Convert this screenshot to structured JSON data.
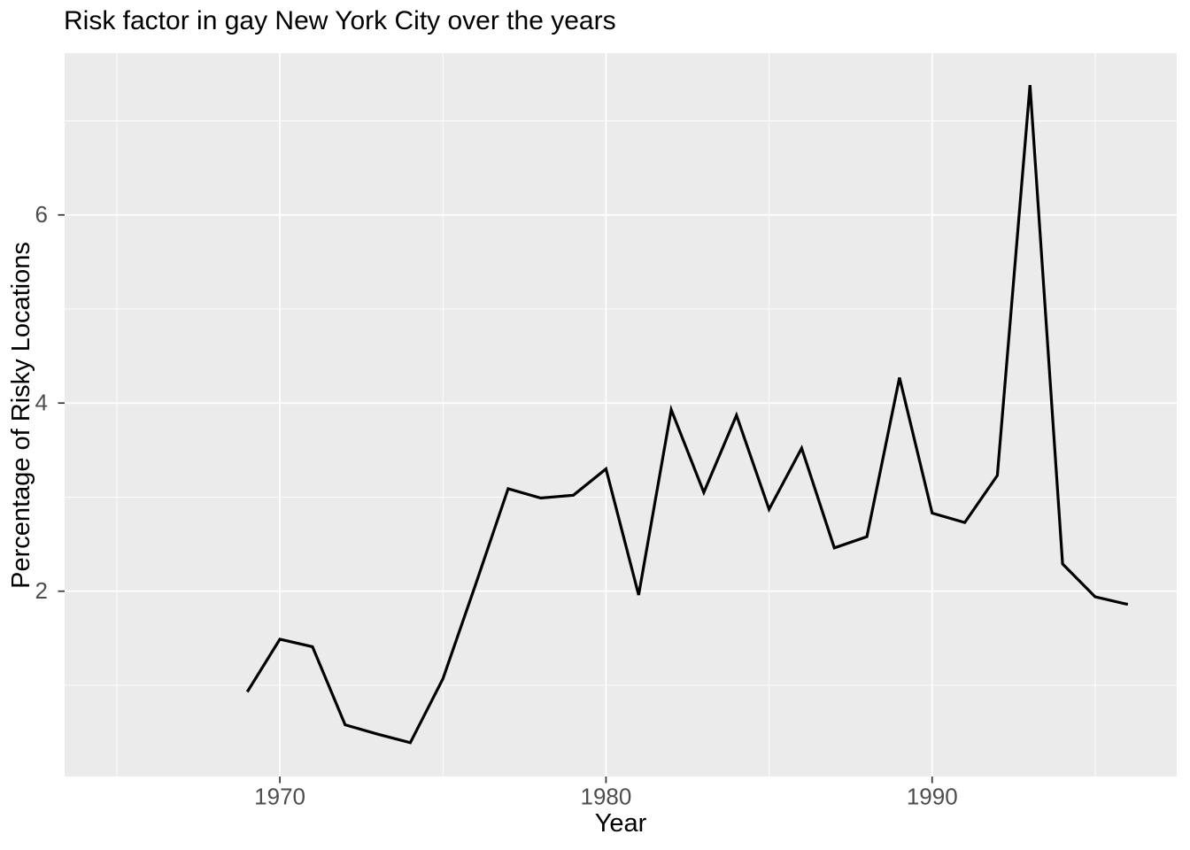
{
  "chart_data": {
    "type": "line",
    "title": "Risk factor in gay New York City over the years",
    "xlabel": "Year",
    "ylabel": "Percentage of Risky Locations",
    "x": [
      1969,
      1970,
      1971,
      1972,
      1973,
      1974,
      1975,
      1976,
      1977,
      1978,
      1979,
      1980,
      1981,
      1982,
      1983,
      1984,
      1985,
      1986,
      1987,
      1988,
      1989,
      1990,
      1991,
      1992,
      1993,
      1994,
      1995,
      1996
    ],
    "series": [
      {
        "name": "Percentage of Risky Locations",
        "values": [
          0.93,
          1.49,
          1.41,
          0.58,
          0.48,
          0.39,
          1.07,
          2.07,
          3.09,
          2.99,
          3.02,
          3.3,
          1.96,
          3.93,
          3.05,
          3.87,
          2.87,
          3.52,
          2.46,
          2.58,
          4.27,
          2.83,
          2.73,
          3.23,
          7.38,
          2.29,
          1.94,
          1.86
        ]
      }
    ],
    "x_ticks": {
      "major": [
        1970,
        1980,
        1990
      ],
      "minor": [
        1965,
        1975,
        1985,
        1995
      ]
    },
    "y_ticks": {
      "major": [
        2,
        4,
        6
      ],
      "minor": [
        1,
        3,
        5,
        7
      ]
    },
    "x_tick_labels": [
      "1970",
      "1980",
      "1990"
    ],
    "y_tick_labels": [
      "2",
      "4",
      "6"
    ],
    "x_range": [
      1963.4,
      1997.5
    ],
    "y_range": [
      0.03,
      7.72
    ],
    "grid": "on",
    "legend": "none",
    "colors": {
      "panel_background": "#EBEBEB",
      "grid": "#FFFFFF",
      "line": "#000000",
      "tick_label": "#4D4D4D",
      "tick_mark": "#333333",
      "text": "#000000"
    }
  }
}
